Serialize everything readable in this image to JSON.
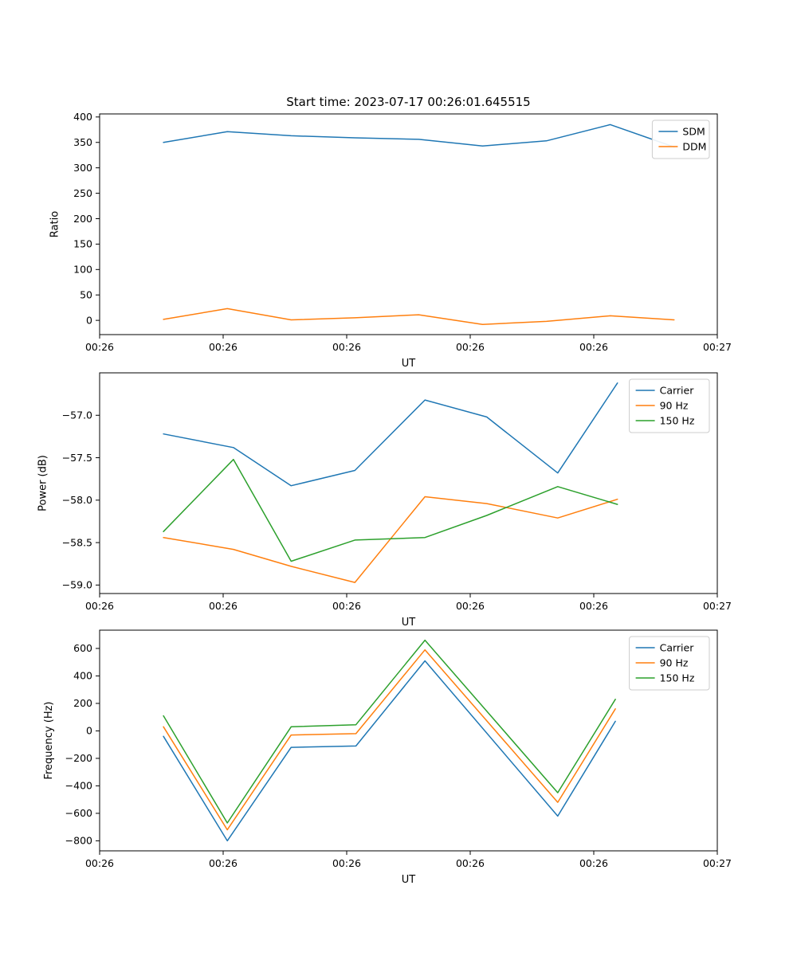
{
  "figure": {
    "background_color": "#ffffff"
  },
  "chart_data": [
    {
      "type": "line",
      "title": "Start time: 2023-07-17 00:26:01.645515",
      "xlabel": "UT",
      "ylabel": "Ratio",
      "xlim": [
        0,
        60
      ],
      "ylim": [
        -28,
        406
      ],
      "xticks": [
        0,
        12,
        24,
        36,
        48,
        60
      ],
      "xticklabels": [
        "00:26",
        "00:26",
        "00:26",
        "00:26",
        "00:26",
        "00:27"
      ],
      "yticks": [
        0,
        50,
        100,
        150,
        200,
        250,
        300,
        350,
        400
      ],
      "yticklabels": [
        "0",
        "50",
        "100",
        "150",
        "200",
        "250",
        "300",
        "350",
        "400"
      ],
      "grid": false,
      "legend_position": "upper right",
      "x": [
        6.2,
        12.4,
        18.6,
        24.8,
        31.0,
        37.2,
        43.4,
        49.6,
        55.8
      ],
      "series": [
        {
          "name": "SDM",
          "color": "#1f77b4",
          "values": [
            350,
            371,
            363,
            359,
            356,
            343,
            353,
            385,
            341
          ]
        },
        {
          "name": "DDM",
          "color": "#ff7f0e",
          "values": [
            2,
            23,
            1,
            5,
            11,
            -8,
            -2,
            9,
            1
          ]
        }
      ]
    },
    {
      "type": "line",
      "title": "",
      "xlabel": "UT",
      "ylabel": "Power (dB)",
      "xlim": [
        0,
        60
      ],
      "ylim": [
        -59.1,
        -56.5
      ],
      "xticks": [
        0,
        12,
        24,
        36,
        48,
        60
      ],
      "xticklabels": [
        "00:26",
        "00:26",
        "00:26",
        "00:26",
        "00:26",
        "00:27"
      ],
      "yticks": [
        -59.0,
        -58.5,
        -58.0,
        -57.5,
        -57.0
      ],
      "yticklabels": [
        "−59.0",
        "−58.5",
        "−58.0",
        "−57.5",
        "−57.0"
      ],
      "grid": false,
      "legend_position": "upper right",
      "x": [
        6.2,
        13.0,
        18.6,
        24.8,
        31.6,
        37.6,
        44.5,
        50.3
      ],
      "series": [
        {
          "name": "Carrier",
          "color": "#1f77b4",
          "values": [
            -57.22,
            -57.38,
            -57.83,
            -57.65,
            -56.82,
            -57.02,
            -57.68,
            -56.62
          ]
        },
        {
          "name": "90 Hz",
          "color": "#ff7f0e",
          "values": [
            -58.44,
            -58.58,
            -58.78,
            -58.97,
            -57.96,
            -58.04,
            -58.21,
            -57.99
          ]
        },
        {
          "name": "150 Hz",
          "color": "#2ca02c",
          "values": [
            -58.37,
            -57.52,
            -58.72,
            -58.47,
            -58.44,
            -58.18,
            -57.84,
            -58.05
          ]
        }
      ]
    },
    {
      "type": "line",
      "title": "",
      "xlabel": "UT",
      "ylabel": "Frequency (Hz)",
      "xlim": [
        0,
        60
      ],
      "ylim": [
        -873,
        733
      ],
      "xticks": [
        0,
        12,
        24,
        36,
        48,
        60
      ],
      "xticklabels": [
        "00:26",
        "00:26",
        "00:26",
        "00:26",
        "00:26",
        "00:27"
      ],
      "yticks": [
        -800,
        -600,
        -400,
        -200,
        0,
        200,
        400,
        600
      ],
      "yticklabels": [
        "−800",
        "−600",
        "−400",
        "−200",
        "0",
        "200",
        "400",
        "600"
      ],
      "grid": false,
      "legend_position": "upper right",
      "x": [
        6.2,
        12.4,
        18.6,
        24.9,
        31.6,
        44.5,
        50.1
      ],
      "series": [
        {
          "name": "Carrier",
          "color": "#1f77b4",
          "values": [
            -40,
            -800,
            -120,
            -110,
            510,
            -620,
            70
          ]
        },
        {
          "name": "90 Hz",
          "color": "#ff7f0e",
          "values": [
            30,
            -720,
            -30,
            -20,
            590,
            -520,
            160
          ]
        },
        {
          "name": "150 Hz",
          "color": "#2ca02c",
          "values": [
            110,
            -670,
            30,
            45,
            660,
            -450,
            230
          ]
        }
      ]
    }
  ]
}
